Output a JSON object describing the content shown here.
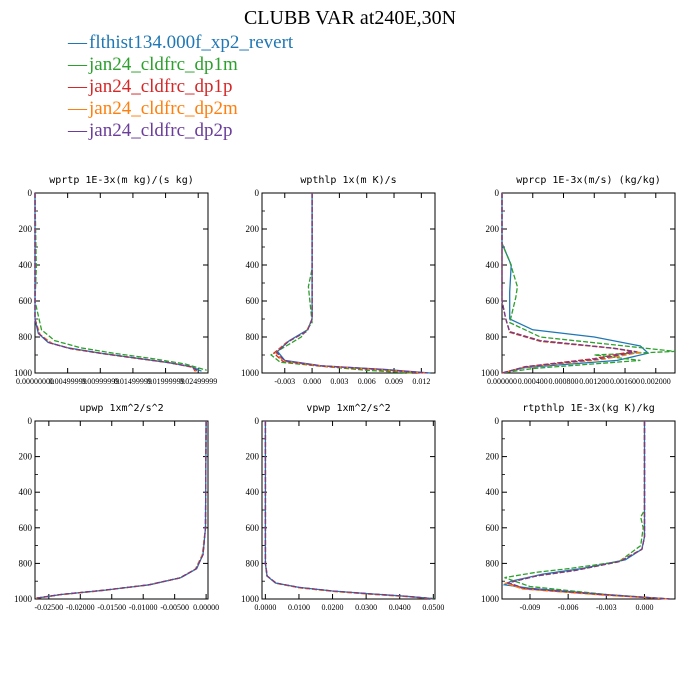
{
  "title": "CLUBB VAR at240E,30N",
  "legend": [
    {
      "name": "flthist134.000f_xp2_revert",
      "color": "#1f77b4"
    },
    {
      "name": "jan24_cldfrc_dp1m",
      "color": "#2ca02c"
    },
    {
      "name": "jan24_cldfrc_dp1p",
      "color": "#d62728"
    },
    {
      "name": "jan24_cldfrc_dp2m",
      "color": "#ff7f0e"
    },
    {
      "name": "jan24_cldfrc_dp2p",
      "color": "#6a3d9a"
    }
  ],
  "chart_data": [
    {
      "type": "line",
      "title": "wprtp  1E-3x(m kg)/(s kg)",
      "xlim": [
        0.0,
        0.0265
      ],
      "ylim": [
        0,
        1000
      ],
      "y_inverted": true,
      "xticks": [
        "0.00000000",
        "0.00499999",
        "0.00999999",
        "0.01499999",
        "0.01999999",
        "0.02499999"
      ],
      "yticks": [
        "0",
        "200",
        "400",
        "600",
        "800",
        "1000"
      ],
      "series": [
        {
          "color": "#1f77b4",
          "dashed": false,
          "x": [
            0,
            0,
            0.0005,
            0.002,
            0.005,
            0.01,
            0.015,
            0.02,
            0.024,
            0.0255
          ],
          "y": [
            0,
            700,
            780,
            830,
            860,
            890,
            915,
            940,
            965,
            990
          ]
        },
        {
          "color": "#2ca02c",
          "dashed": true,
          "x": [
            0,
            0.0002,
            0,
            0.001,
            0.003,
            0.007,
            0.012,
            0.018,
            0.023,
            0.0263
          ],
          "y": [
            0,
            420,
            600,
            760,
            820,
            860,
            890,
            920,
            950,
            985
          ]
        },
        {
          "color": "#d62728",
          "dashed": true,
          "x": [
            0,
            0,
            0.0007,
            0.0025,
            0.0055,
            0.0105,
            0.0155,
            0.0205,
            0.0242,
            0.0245
          ],
          "y": [
            0,
            700,
            785,
            835,
            865,
            893,
            918,
            942,
            968,
            990
          ]
        },
        {
          "color": "#ff7f0e",
          "dashed": true,
          "x": [
            0,
            0,
            0.0008,
            0.0027,
            0.0057,
            0.0107,
            0.0157,
            0.0207,
            0.0243,
            0.0247
          ],
          "y": [
            0,
            700,
            787,
            837,
            867,
            895,
            920,
            944,
            970,
            992
          ]
        },
        {
          "color": "#6a3d9a",
          "dashed": true,
          "x": [
            0,
            0,
            0.0006,
            0.0022,
            0.0052,
            0.0102,
            0.0152,
            0.0202,
            0.024,
            0.025
          ],
          "y": [
            0,
            700,
            782,
            832,
            862,
            891,
            916,
            941,
            966,
            990
          ]
        }
      ]
    },
    {
      "type": "line",
      "title": "wpthlp  1x(m K)/s",
      "xlim": [
        -0.0055,
        0.0135
      ],
      "ylim": [
        0,
        1000
      ],
      "y_inverted": true,
      "xticks": [
        "-0.003",
        "0.000",
        "0.003",
        "0.006",
        "0.009",
        "0.012"
      ],
      "yticks": [
        "0",
        "200",
        "400",
        "600",
        "800",
        "1000"
      ],
      "series": [
        {
          "color": "#1f77b4",
          "dashed": false,
          "x": [
            0,
            0,
            0,
            -0.0005,
            -0.0025,
            -0.0038,
            -0.003,
            0.001,
            0.008,
            0.013
          ],
          "y": [
            0,
            500,
            700,
            760,
            820,
            880,
            930,
            960,
            980,
            1000
          ]
        },
        {
          "color": "#2ca02c",
          "dashed": true,
          "x": [
            0,
            0,
            -0.0004,
            0,
            -0.0012,
            -0.0045,
            -0.0035,
            0.0005,
            0.006,
            0.011
          ],
          "y": [
            0,
            420,
            520,
            720,
            800,
            900,
            940,
            960,
            985,
            1000
          ]
        },
        {
          "color": "#d62728",
          "dashed": true,
          "x": [
            0,
            0,
            0,
            -0.0006,
            -0.0028,
            -0.0042,
            -0.0032,
            0.001,
            0.0075,
            0.0125
          ],
          "y": [
            0,
            500,
            700,
            770,
            830,
            890,
            935,
            962,
            982,
            1000
          ]
        },
        {
          "color": "#ff7f0e",
          "dashed": true,
          "x": [
            0,
            0,
            0,
            -0.0006,
            -0.0027,
            -0.004,
            -0.0031,
            0.001,
            0.0074,
            0.0124
          ],
          "y": [
            0,
            500,
            700,
            768,
            828,
            888,
            934,
            961,
            981,
            1000
          ]
        },
        {
          "color": "#6a3d9a",
          "dashed": true,
          "x": [
            0,
            0,
            0,
            -0.0005,
            -0.0026,
            -0.0039,
            -0.003,
            0.001,
            0.0077,
            0.0127
          ],
          "y": [
            0,
            500,
            700,
            765,
            825,
            885,
            932,
            960,
            980,
            1000
          ]
        }
      ]
    },
    {
      "type": "line",
      "title": "wprcp  1E-3x(m/s) (kg/kg)",
      "xlim": [
        0.0,
        0.00225
      ],
      "ylim": [
        0,
        1000
      ],
      "y_inverted": true,
      "xticks": [
        "0.000000",
        "0.000400",
        "0.000800",
        "0.001200",
        "0.001600",
        "0.002000"
      ],
      "yticks": [
        "0",
        "200",
        "400",
        "600",
        "800",
        "1000"
      ],
      "series": [
        {
          "color": "#1f77b4",
          "dashed": false,
          "x": [
            0,
            0,
            0.00012,
            0.0001,
            0.0001,
            0.0004,
            0.0012,
            0.0018,
            0.0019,
            0.0015,
            0.0003,
            0
          ],
          "y": [
            0,
            280,
            400,
            550,
            700,
            760,
            800,
            850,
            890,
            930,
            970,
            1000
          ]
        },
        {
          "color": "#2ca02c",
          "dashed": true,
          "x": [
            0,
            0,
            0.0001,
            0.0002,
            0.00018,
            0.0001,
            0.0005,
            0.0016,
            0.00225,
            0.0012,
            0.0018,
            0.0004,
            0
          ],
          "y": [
            0,
            280,
            380,
            520,
            580,
            720,
            800,
            850,
            880,
            900,
            930,
            975,
            1000
          ]
        },
        {
          "color": "#d62728",
          "dashed": true,
          "x": [
            0,
            0,
            5e-05,
            0.0001,
            0.0005,
            0.0014,
            0.0017,
            0.0012,
            0.0003,
            0
          ],
          "y": [
            0,
            600,
            700,
            770,
            820,
            860,
            880,
            920,
            965,
            1000
          ]
        },
        {
          "color": "#ff7f0e",
          "dashed": true,
          "x": [
            0,
            0,
            5e-05,
            0.0001,
            0.0005,
            0.0015,
            0.0018,
            0.0013,
            0.0003,
            0
          ],
          "y": [
            0,
            600,
            700,
            775,
            825,
            865,
            885,
            925,
            968,
            1000
          ]
        },
        {
          "color": "#6a3d9a",
          "dashed": true,
          "x": [
            0,
            0,
            5e-05,
            0.0001,
            0.0005,
            0.00145,
            0.00175,
            0.00125,
            0.0003,
            0
          ],
          "y": [
            0,
            600,
            700,
            772,
            822,
            862,
            882,
            922,
            966,
            1000
          ]
        }
      ]
    },
    {
      "type": "line",
      "title": "upwp  1xm^2/s^2",
      "xlim": [
        -0.0272,
        0.0003
      ],
      "ylim": [
        0,
        1000
      ],
      "y_inverted": true,
      "xticks": [
        "-0.02500",
        "-0.02000",
        "-0.01500",
        "-0.01000",
        "-0.00500",
        "0.00000"
      ],
      "yticks": [
        "0",
        "200",
        "400",
        "600",
        "800",
        "1000"
      ],
      "series": [
        {
          "color": "#1f77b4",
          "dashed": false,
          "x": [
            0,
            -0.0001,
            -0.0005,
            -0.0015,
            -0.004,
            -0.009,
            -0.016,
            -0.023,
            -0.027
          ],
          "y": [
            0,
            600,
            750,
            830,
            880,
            920,
            950,
            975,
            995
          ]
        },
        {
          "color": "#2ca02c",
          "dashed": true,
          "x": [
            0,
            -0.0001,
            -0.0006,
            -0.0017,
            -0.0042,
            -0.0092,
            -0.0162,
            -0.0232,
            -0.0268
          ],
          "y": [
            0,
            600,
            752,
            832,
            882,
            921,
            951,
            976,
            995
          ]
        },
        {
          "color": "#d62728",
          "dashed": true,
          "x": [
            0,
            -0.0001,
            -0.0005,
            -0.0016,
            -0.0041,
            -0.0091,
            -0.0161,
            -0.0231,
            -0.027
          ],
          "y": [
            0,
            600,
            751,
            831,
            881,
            920,
            950,
            975,
            995
          ]
        },
        {
          "color": "#ff7f0e",
          "dashed": true,
          "x": [
            0,
            -0.0001,
            -0.0006,
            -0.0017,
            -0.0043,
            -0.0093,
            -0.0163,
            -0.0233,
            -0.0271
          ],
          "y": [
            0,
            600,
            753,
            833,
            883,
            922,
            952,
            977,
            996
          ]
        },
        {
          "color": "#6a3d9a",
          "dashed": true,
          "x": [
            0,
            -0.0001,
            -0.0005,
            -0.0016,
            -0.0041,
            -0.0091,
            -0.0161,
            -0.0231,
            -0.0269
          ],
          "y": [
            0,
            600,
            751,
            831,
            881,
            920,
            950,
            975,
            995
          ]
        }
      ]
    },
    {
      "type": "line",
      "title": "vpwp  1xm^2/s^2",
      "xlim": [
        -0.001,
        0.0505
      ],
      "ylim": [
        0,
        1000
      ],
      "y_inverted": true,
      "xticks": [
        "0.0000",
        "0.0100",
        "0.0200",
        "0.0300",
        "0.0400",
        "0.0500"
      ],
      "yticks": [
        "0",
        "200",
        "400",
        "600",
        "800",
        "1000"
      ],
      "series": [
        {
          "color": "#1f77b4",
          "dashed": false,
          "x": [
            0,
            0,
            0.0005,
            0.003,
            0.01,
            0.02,
            0.032,
            0.042,
            0.05
          ],
          "y": [
            0,
            800,
            870,
            910,
            935,
            955,
            972,
            985,
            998
          ]
        },
        {
          "color": "#2ca02c",
          "dashed": true,
          "x": [
            0,
            0,
            0.0005,
            0.0032,
            0.0102,
            0.0202,
            0.0322,
            0.0422,
            0.05
          ],
          "y": [
            0,
            800,
            871,
            911,
            936,
            956,
            973,
            986,
            998
          ]
        },
        {
          "color": "#d62728",
          "dashed": true,
          "x": [
            0,
            0,
            0.0006,
            0.0033,
            0.0103,
            0.0203,
            0.0323,
            0.0423,
            0.0495
          ],
          "y": [
            0,
            800,
            872,
            912,
            937,
            957,
            974,
            986,
            998
          ]
        },
        {
          "color": "#ff7f0e",
          "dashed": true,
          "x": [
            0,
            0,
            0.0006,
            0.0034,
            0.0104,
            0.0204,
            0.0324,
            0.0424,
            0.0496
          ],
          "y": [
            0,
            800,
            873,
            913,
            938,
            958,
            975,
            987,
            999
          ]
        },
        {
          "color": "#6a3d9a",
          "dashed": true,
          "x": [
            0,
            0,
            0.0005,
            0.0031,
            0.0101,
            0.0201,
            0.0321,
            0.0421,
            0.0498
          ],
          "y": [
            0,
            800,
            870,
            910,
            935,
            955,
            972,
            985,
            998
          ]
        }
      ]
    },
    {
      "type": "line",
      "title": "rtpthlp  1E-3x(kg K)/kg",
      "xlim": [
        -0.0112,
        0.0024
      ],
      "ylim": [
        0,
        1000
      ],
      "y_inverted": true,
      "xticks": [
        "-0.009",
        "-0.006",
        "-0.003",
        "0.000"
      ],
      "yticks": [
        "0",
        "200",
        "400",
        "600",
        "800",
        "1000"
      ],
      "series": [
        {
          "color": "#1f77b4",
          "dashed": false,
          "x": [
            0,
            0,
            -0.0002,
            -0.0015,
            -0.005,
            -0.008,
            -0.0105,
            -0.011,
            -0.009,
            -0.003,
            0.002
          ],
          "y": [
            0,
            650,
            720,
            780,
            830,
            860,
            900,
            920,
            940,
            975,
            1000
          ]
        },
        {
          "color": "#2ca02c",
          "dashed": true,
          "x": [
            0,
            0,
            -0.0003,
            -0.0001,
            -0.0003,
            -0.002,
            -0.006,
            -0.0085,
            -0.011,
            -0.009,
            -0.003,
            0.002
          ],
          "y": [
            0,
            500,
            540,
            600,
            700,
            790,
            830,
            850,
            880,
            930,
            975,
            1000
          ]
        },
        {
          "color": "#d62728",
          "dashed": true,
          "x": [
            0,
            0,
            -0.0002,
            -0.002,
            -0.0055,
            -0.0085,
            -0.0108,
            -0.0095,
            -0.0032,
            0.002
          ],
          "y": [
            0,
            650,
            720,
            790,
            840,
            870,
            910,
            942,
            977,
            1000
          ]
        },
        {
          "color": "#ff7f0e",
          "dashed": true,
          "x": [
            0,
            0,
            -0.0002,
            -0.0021,
            -0.0056,
            -0.0086,
            -0.0109,
            -0.0096,
            -0.0033,
            0.002
          ],
          "y": [
            0,
            650,
            722,
            792,
            842,
            872,
            912,
            944,
            978,
            1000
          ]
        },
        {
          "color": "#6a3d9a",
          "dashed": true,
          "x": [
            0,
            0,
            -0.0002,
            -0.0019,
            -0.0054,
            -0.0084,
            -0.0107,
            -0.0094,
            -0.0031,
            0.002
          ],
          "y": [
            0,
            650,
            721,
            789,
            839,
            869,
            909,
            941,
            976,
            1000
          ]
        }
      ]
    }
  ]
}
